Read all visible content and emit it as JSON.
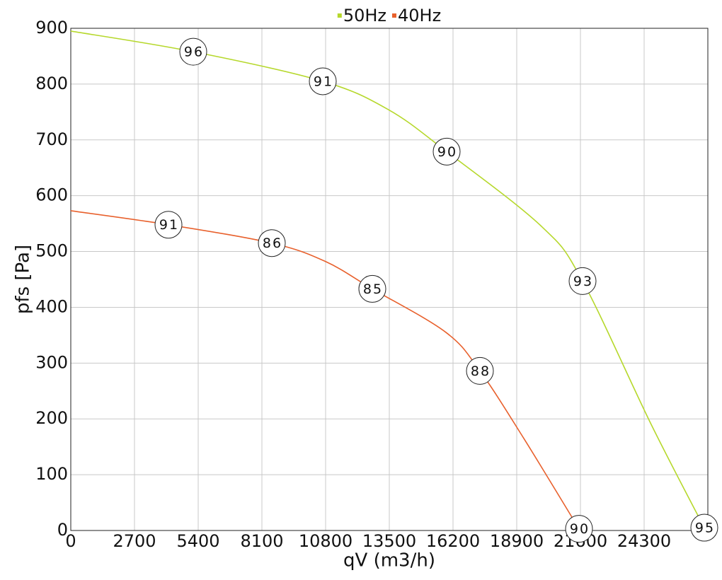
{
  "chart_data": {
    "type": "line",
    "x_label": "qV (m3/h)",
    "y_label": "pfs [Pa]",
    "xlim": [
      0,
      27000
    ],
    "ylim": [
      0,
      900
    ],
    "xticks": [
      0,
      2700,
      5400,
      8100,
      10800,
      13500,
      16200,
      18900,
      21600,
      24300
    ],
    "yticks": [
      0,
      100,
      200,
      300,
      400,
      500,
      600,
      700,
      800,
      900
    ],
    "grid": true,
    "legend": "top",
    "series": [
      {
        "name": "50Hz",
        "color": "#b6d82c",
        "x": [
          0,
          5190,
          10680,
          13470,
          15930,
          19950,
          21690,
          24600,
          26850
        ],
        "values": [
          895,
          858,
          805,
          754,
          679,
          545,
          447,
          190,
          5
        ],
        "efficiency": [
          null,
          96,
          91,
          null,
          90,
          null,
          93,
          null,
          95
        ]
      },
      {
        "name": "40Hz",
        "color": "#e8602c",
        "x": [
          0,
          4140,
          8520,
          10800,
          12780,
          15900,
          17340,
          19200,
          21540
        ],
        "values": [
          573,
          548,
          515,
          482,
          433,
          355,
          286,
          165,
          3
        ],
        "efficiency": [
          null,
          91,
          86,
          null,
          85,
          null,
          88,
          null,
          90
        ]
      }
    ]
  }
}
